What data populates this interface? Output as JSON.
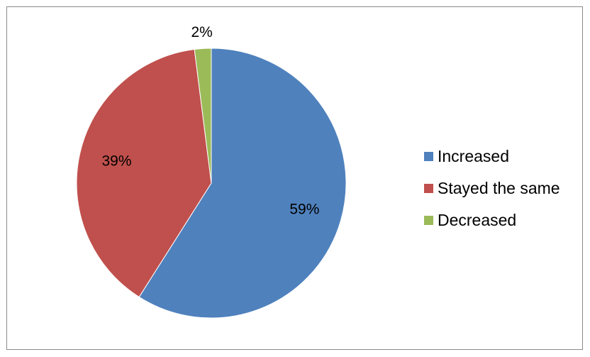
{
  "chart_data": {
    "type": "pie",
    "title": "",
    "slices": [
      {
        "label": "Increased",
        "value": 59,
        "value_label": "59%",
        "color": "#4F81BD"
      },
      {
        "label": "Stayed the same",
        "value": 39,
        "value_label": "39%",
        "color": "#C0504D"
      },
      {
        "label": "Decreased",
        "value": 2,
        "value_label": "2%",
        "color": "#9BBB59"
      }
    ],
    "legend_position": "right"
  }
}
